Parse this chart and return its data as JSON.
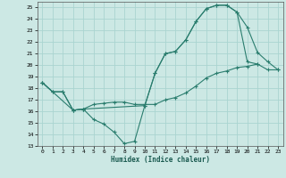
{
  "xlabel": "Humidex (Indice chaleur)",
  "bg_color": "#cce8e4",
  "grid_color": "#aad4d0",
  "line_color": "#2a7d6e",
  "xlim": [
    -0.5,
    23.5
  ],
  "ylim": [
    13,
    25.5
  ],
  "xticks": [
    0,
    1,
    2,
    3,
    4,
    5,
    6,
    7,
    8,
    9,
    10,
    11,
    12,
    13,
    14,
    15,
    16,
    17,
    18,
    19,
    20,
    21,
    22,
    23
  ],
  "yticks": [
    13,
    14,
    15,
    16,
    17,
    18,
    19,
    20,
    21,
    22,
    23,
    24,
    25
  ],
  "line1_x": [
    0,
    1,
    2,
    3,
    4,
    5,
    6,
    7,
    8,
    9,
    10,
    11,
    12,
    13,
    14,
    15,
    16,
    17,
    18,
    19,
    20,
    21
  ],
  "line1_y": [
    18.5,
    17.7,
    17.7,
    16.1,
    16.2,
    15.3,
    14.9,
    14.2,
    13.2,
    13.4,
    16.5,
    19.3,
    21.0,
    21.2,
    22.2,
    23.8,
    24.9,
    25.2,
    25.2,
    24.6,
    20.3,
    20.1
  ],
  "line2_x": [
    0,
    1,
    2,
    3,
    4,
    5,
    6,
    7,
    8,
    9,
    10,
    11,
    12,
    13,
    14,
    15,
    16,
    17,
    18,
    19,
    20,
    21,
    22,
    23
  ],
  "line2_y": [
    18.5,
    17.7,
    17.7,
    16.1,
    16.2,
    16.6,
    16.7,
    16.8,
    16.8,
    16.6,
    16.6,
    16.6,
    17.0,
    17.2,
    17.6,
    18.2,
    18.9,
    19.3,
    19.5,
    19.8,
    19.9,
    20.1,
    19.6,
    19.6
  ],
  "line3_x": [
    0,
    3,
    4,
    10,
    11,
    12,
    13,
    14,
    15,
    16,
    17,
    18,
    19,
    20,
    21,
    22,
    23
  ],
  "line3_y": [
    18.5,
    16.1,
    16.2,
    16.5,
    19.3,
    21.0,
    21.2,
    22.2,
    23.8,
    24.9,
    25.2,
    25.2,
    24.6,
    23.3,
    21.1,
    20.3,
    19.6
  ]
}
